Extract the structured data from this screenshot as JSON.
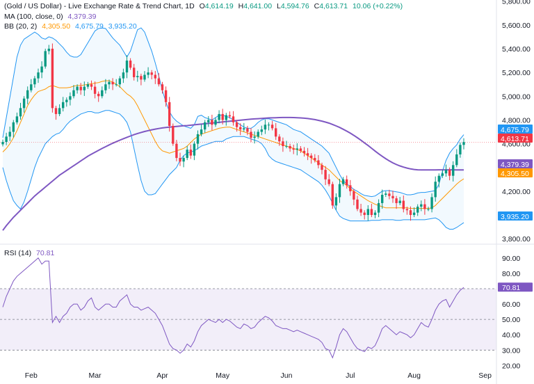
{
  "header": {
    "title": "(Gold / US Dollar) - Live Exchange Rate & Trend Chart, 1D",
    "o_label": "O",
    "o_value": "4,614.19",
    "h_label": "H",
    "h_value": "4,641.00",
    "l_label": "L",
    "l_value": "4,594.76",
    "c_label": "C",
    "c_value": "4,613.71",
    "change": "10.06 (+0.22%)",
    "ma_label": "MA (100, close, 0)",
    "ma_value": "4,379.39",
    "bb_label": "BB (20, 2)",
    "bb_basis": "4,305.50",
    "bb_upper": "4,675.79",
    "bb_lower": "3,935.20",
    "rsi_label": "RSI (14)",
    "rsi_value": "70.81"
  },
  "colors": {
    "up": "#089981",
    "down": "#f23645",
    "ma": "#7e57c2",
    "bb_basis": "#ff9800",
    "bb_band": "#2196f3",
    "rsi": "#7e57c2"
  },
  "chart_data": [
    {
      "type": "candlestick",
      "title": "(Gold / US Dollar) - Live Exchange Rate & Trend Chart, 1D",
      "x_ticks": [
        "Feb",
        "Mar",
        "Apr",
        "May",
        "Jun",
        "Jul",
        "Aug",
        "Sep"
      ],
      "y_ticks": [
        "5,800.00",
        "5,600.00",
        "5,400.00",
        "5,200.00",
        "5,000.00",
        "4,800.00",
        "4,600.00",
        "4,400.00",
        "4,200.00",
        "4,000.00",
        "3,800.00"
      ],
      "price_labels": {
        "bb_upper": "4,675.79",
        "close": "4,613.71",
        "ma": "4,379.39",
        "bb_basis": "4,305.50",
        "bb_lower": "3,935.20"
      },
      "ylim": [
        3760,
        5810
      ],
      "close": [
        4615,
        4660,
        4700,
        4780,
        4830,
        4900,
        4980,
        5050,
        5100,
        5150,
        5200,
        5250,
        5380,
        5400,
        4900,
        4850,
        4900,
        4950,
        4970,
        5000,
        5050,
        5080,
        5050,
        5080,
        5100,
        5080,
        5020,
        5000,
        5050,
        5100,
        5120,
        5100,
        5100,
        5150,
        5200,
        5300,
        5240,
        5160,
        5170,
        5140,
        5180,
        5200,
        5180,
        5150,
        5100,
        5050,
        4950,
        4750,
        4600,
        4480,
        4450,
        4480,
        4550,
        4500,
        4600,
        4680,
        4720,
        4780,
        4800,
        4760,
        4800,
        4850,
        4800,
        4840,
        4830,
        4780,
        4740,
        4720,
        4730,
        4700,
        4650,
        4660,
        4700,
        4720,
        4760,
        4760,
        4730,
        4660,
        4620,
        4580,
        4580,
        4560,
        4550,
        4560,
        4540,
        4520,
        4500,
        4480,
        4460,
        4420,
        4380,
        4300,
        4260,
        4080,
        4150,
        4260,
        4300,
        4250,
        4200,
        4130,
        4050,
        4020,
        4000,
        4050,
        4000,
        4020,
        4100,
        4170,
        4180,
        4160,
        4140,
        4100,
        4120,
        4050,
        4040,
        4000,
        4020,
        4070,
        4090,
        4050,
        4050,
        4150,
        4280,
        4330,
        4350,
        4380,
        4330,
        4420,
        4510,
        4590,
        4614
      ],
      "ma": [
        3870,
        3910,
        3945,
        3980,
        4010,
        4040,
        4070,
        4100,
        4130,
        4160,
        4185,
        4210,
        4235,
        4260,
        4285,
        4310,
        4335,
        4355,
        4375,
        4395,
        4415,
        4435,
        4455,
        4475,
        4495,
        4512,
        4528,
        4544,
        4560,
        4575,
        4590,
        4604,
        4617,
        4630,
        4642,
        4654,
        4665,
        4676,
        4686,
        4695,
        4703,
        4710,
        4717,
        4723,
        4728,
        4733,
        4737,
        4740,
        4743,
        4746,
        4748,
        4751,
        4753,
        4756,
        4759,
        4762,
        4765,
        4768,
        4771,
        4774,
        4777,
        4780,
        4783,
        4786,
        4789,
        4792,
        4795,
        4798,
        4801,
        4804,
        4807,
        4809,
        4811,
        4813,
        4815,
        4817,
        4818,
        4819,
        4820,
        4821,
        4821,
        4821,
        4820,
        4819,
        4817,
        4815,
        4812,
        4808,
        4803,
        4797,
        4790,
        4782,
        4773,
        4762,
        4750,
        4737,
        4722,
        4706,
        4689,
        4670,
        4650,
        4629,
        4607,
        4585,
        4562,
        4538,
        4515,
        4494,
        4474,
        4455,
        4439,
        4425,
        4413,
        4403,
        4395,
        4388,
        4383,
        4380,
        4379,
        4379,
        4379,
        4379,
        4379,
        4380,
        4380,
        4380,
        4380,
        4380,
        4379,
        4379,
        4379
      ],
      "bb_upper": [
        4650,
        4820,
        4990,
        5160,
        5330,
        5430,
        5480,
        5500,
        5520,
        5540,
        5520,
        5490,
        5480,
        5500,
        5490,
        5470,
        5440,
        5410,
        5370,
        5340,
        5330,
        5330,
        5350,
        5400,
        5450,
        5500,
        5550,
        5570,
        5575,
        5570,
        5530,
        5490,
        5460,
        5430,
        5380,
        5330,
        5380,
        5470,
        5560,
        5575,
        5540,
        5460,
        5380,
        5280,
        5170,
        5050,
        4950,
        4870,
        4820,
        4790,
        4770,
        4750,
        4740,
        4730,
        4760,
        4830,
        4840,
        4820,
        4810,
        4800,
        4820,
        4840,
        4840,
        4830,
        4820,
        4800,
        4780,
        4760,
        4740,
        4730,
        4730,
        4750,
        4780,
        4800,
        4810,
        4810,
        4800,
        4790,
        4780,
        4770,
        4760,
        4740,
        4720,
        4710,
        4700,
        4680,
        4660,
        4640,
        4620,
        4600,
        4580,
        4550,
        4520,
        4460,
        4400,
        4340,
        4290,
        4260,
        4240,
        4215,
        4200,
        4180,
        4165,
        4160,
        4155,
        4160,
        4180,
        4200,
        4205,
        4205,
        4200,
        4195,
        4190,
        4180,
        4170,
        4170,
        4175,
        4185,
        4190,
        4190,
        4195,
        4200,
        4205,
        4260,
        4370,
        4460,
        4520,
        4560,
        4590,
        4640,
        4676
      ],
      "bb_basis": [
        4530,
        4560,
        4600,
        4650,
        4710,
        4780,
        4850,
        4920,
        4970,
        5010,
        5040,
        5050,
        5060,
        5080,
        5090,
        5080,
        5070,
        5070,
        5070,
        5075,
        5085,
        5090,
        5090,
        5095,
        5100,
        5105,
        5110,
        5115,
        5125,
        5130,
        5130,
        5120,
        5100,
        5080,
        5050,
        5020,
        5000,
        4970,
        4920,
        4860,
        4800,
        4740,
        4680,
        4620,
        4570,
        4540,
        4530,
        4520,
        4530,
        4540,
        4550,
        4560,
        4580,
        4610,
        4640,
        4660,
        4680,
        4690,
        4700,
        4710,
        4720,
        4730,
        4735,
        4740,
        4740,
        4730,
        4720,
        4710,
        4700,
        4690,
        4680,
        4670,
        4660,
        4650,
        4640,
        4630,
        4620,
        4610,
        4600,
        4590,
        4580,
        4570,
        4560,
        4550,
        4540,
        4520,
        4500,
        4480,
        4460,
        4440,
        4420,
        4400,
        4380,
        4350,
        4320,
        4290,
        4270,
        4250,
        4220,
        4200,
        4180,
        4160,
        4140,
        4120,
        4105,
        4090,
        4080,
        4070,
        4060,
        4060,
        4060,
        4060,
        4060,
        4060,
        4060,
        4055,
        4055,
        4055,
        4055,
        4055,
        4055,
        4060,
        4080,
        4110,
        4140,
        4170,
        4200,
        4230,
        4260,
        4285,
        4305
      ],
      "bb_lower": [
        4400,
        4290,
        4200,
        4120,
        4080,
        4050,
        4110,
        4200,
        4300,
        4400,
        4480,
        4540,
        4600,
        4630,
        4660,
        4680,
        4690,
        4720,
        4760,
        4790,
        4810,
        4830,
        4850,
        4860,
        4870,
        4870,
        4860,
        4860,
        4870,
        4880,
        4880,
        4870,
        4860,
        4850,
        4820,
        4780,
        4700,
        4560,
        4420,
        4290,
        4200,
        4170,
        4170,
        4180,
        4220,
        4260,
        4300,
        4340,
        4370,
        4400,
        4460,
        4500,
        4520,
        4530,
        4540,
        4560,
        4580,
        4590,
        4600,
        4610,
        4620,
        4620,
        4620,
        4640,
        4650,
        4660,
        4660,
        4660,
        4660,
        4650,
        4640,
        4630,
        4620,
        4600,
        4560,
        4500,
        4470,
        4450,
        4440,
        4430,
        4420,
        4410,
        4400,
        4390,
        4380,
        4360,
        4340,
        4320,
        4300,
        4280,
        4250,
        4210,
        4160,
        4100,
        4040,
        3990,
        3970,
        3960,
        3950,
        3950,
        3950,
        3950,
        3950,
        3950,
        3955,
        3955,
        3955,
        3960,
        3960,
        3960,
        3960,
        3955,
        3955,
        3960,
        3960,
        3960,
        3960,
        3960,
        3960,
        3960,
        3965,
        3970,
        3975,
        3960,
        3930,
        3895,
        3880,
        3880,
        3895,
        3915,
        3935
      ]
    },
    {
      "type": "line",
      "title": "RSI (14)",
      "series": [
        {
          "name": "RSI (14)",
          "values": [
            58,
            65,
            70,
            75,
            78,
            80,
            82,
            84,
            86,
            88,
            90,
            86,
            88,
            88,
            48,
            52,
            48,
            52,
            54,
            58,
            60,
            60,
            56,
            58,
            62,
            64,
            58,
            56,
            58,
            60,
            60,
            58,
            58,
            62,
            64,
            66,
            60,
            58,
            58,
            56,
            57,
            58,
            56,
            54,
            50,
            46,
            40,
            34,
            31,
            30,
            28,
            30,
            34,
            32,
            36,
            42,
            46,
            48,
            50,
            49,
            48,
            50,
            48,
            50,
            49,
            47,
            45,
            44,
            47,
            46,
            44,
            45,
            48,
            50,
            52,
            51,
            49,
            46,
            45,
            44,
            44,
            43,
            42,
            43,
            42,
            41,
            40,
            39,
            38,
            37,
            35,
            31,
            30,
            25,
            32,
            40,
            44,
            42,
            38,
            34,
            31,
            30,
            29,
            32,
            31,
            33,
            38,
            44,
            46,
            44,
            42,
            40,
            42,
            41,
            40,
            38,
            40,
            44,
            48,
            46,
            45,
            50,
            56,
            60,
            62,
            63,
            58,
            62,
            66,
            69,
            70.81
          ]
        }
      ],
      "y_ticks": [
        "90.00",
        "80.00",
        "70.00",
        "60.00",
        "50.00",
        "40.00",
        "30.00",
        "20.00"
      ],
      "ylim": [
        17,
        94
      ],
      "bands": [
        30,
        50,
        70
      ],
      "price_labels": {
        "rsi": "70.81"
      }
    }
  ]
}
